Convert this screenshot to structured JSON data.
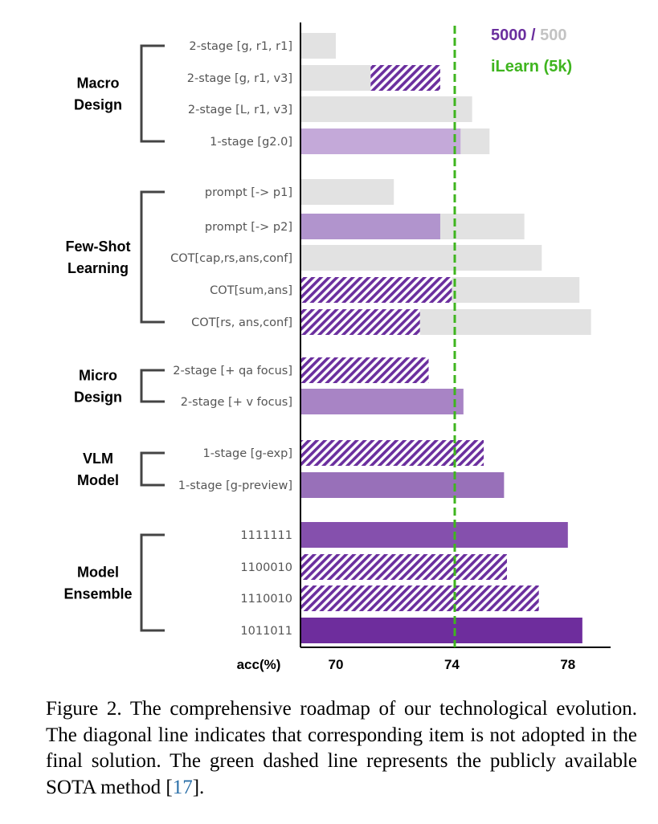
{
  "chart_data": {
    "type": "bar",
    "orientation": "horizontal",
    "xlabel": "acc(%)",
    "xticks": [
      70,
      74,
      78
    ],
    "xlim": [
      68.8,
      79.5
    ],
    "legend": {
      "primary_label": "5000",
      "separator": " / ",
      "secondary_label": "500",
      "reference_label": "iLearn (5k)",
      "placement": "top-right"
    },
    "reference_line": {
      "name": "iLearn (5k)",
      "value": 74.1,
      "color": "#3fb51f",
      "style": "dashed"
    },
    "colors": {
      "grey": "#e2e2e2",
      "hatch": "#6b2f9e",
      "legend_purple": "#6b2f9e",
      "legend_grey": "#c3c3c3"
    },
    "groups": [
      {
        "name": "Macro Design",
        "lines": [
          "Macro",
          "Design"
        ],
        "items": [
          {
            "label": "2-stage [g, r1, r1]",
            "v5000": null,
            "v500": 70.0,
            "adopted": true,
            "color": null
          },
          {
            "label": "2-stage [g, r1, v3]",
            "v5000": 73.6,
            "v500": 71.2,
            "adopted": false,
            "color": null
          },
          {
            "label": "2-stage [L, r1, v3]",
            "v5000": null,
            "v500": 74.7,
            "adopted": true,
            "color": null
          },
          {
            "label": "1-stage [g2.0]",
            "v5000": 74.3,
            "v500": 75.3,
            "adopted": true,
            "color": "#c4a9d9"
          }
        ]
      },
      {
        "name": "Few-Shot Learning",
        "lines": [
          "Few-Shot",
          "Learning"
        ],
        "items": [
          {
            "label": "prompt [-> p1]",
            "v5000": null,
            "v500": 72.0,
            "adopted": true,
            "color": null
          },
          {
            "label": "prompt [-> p2]",
            "v5000": 73.6,
            "v500": 76.5,
            "adopted": true,
            "color": "#b194cd"
          },
          {
            "label": "COT[cap,rs,ans,conf]",
            "v5000": null,
            "v500": 77.1,
            "adopted": true,
            "color": null
          },
          {
            "label": "COT[sum,ans]",
            "v5000": 74.0,
            "v500": 78.4,
            "adopted": false,
            "color": null
          },
          {
            "label": "COT[rs, ans,conf]",
            "v5000": 72.9,
            "v500": 78.8,
            "adopted": false,
            "color": null
          }
        ]
      },
      {
        "name": "Micro Design",
        "lines": [
          "Micro",
          "Design"
        ],
        "items": [
          {
            "label": "2-stage [+ qa focus]",
            "v5000": 73.2,
            "v500": null,
            "adopted": false,
            "color": null
          },
          {
            "label": "2-stage [+ v focus]",
            "v5000": 74.4,
            "v500": null,
            "adopted": true,
            "color": "#a884c5"
          }
        ]
      },
      {
        "name": "VLM Model",
        "lines": [
          "VLM",
          "Model"
        ],
        "items": [
          {
            "label": "1-stage [g-exp]",
            "v5000": 75.1,
            "v500": null,
            "adopted": false,
            "color": null
          },
          {
            "label": "1-stage [g-preview]",
            "v5000": 75.8,
            "v500": null,
            "adopted": true,
            "color": "#9870b9"
          }
        ]
      },
      {
        "name": "Model Ensemble",
        "lines": [
          "Model",
          "Ensemble"
        ],
        "items": [
          {
            "label": "1111111",
            "v5000": 78.0,
            "v500": null,
            "adopted": true,
            "color": "#8550ad"
          },
          {
            "label": "1100010",
            "v5000": 75.9,
            "v500": null,
            "adopted": false,
            "color": null
          },
          {
            "label": "1110010",
            "v5000": 77.0,
            "v500": null,
            "adopted": false,
            "color": null
          },
          {
            "label": "1011011",
            "v5000": 78.5,
            "v500": null,
            "adopted": true,
            "color": "#6e2d9d"
          }
        ]
      }
    ]
  },
  "caption": {
    "text": "Figure 2.  The comprehensive roadmap of our technological evolution. The diagonal line indicates that corresponding item is not adopted in the final solution. The green dashed line represents the publicly available SOTA method [",
    "ref": "17",
    "end": "]."
  }
}
